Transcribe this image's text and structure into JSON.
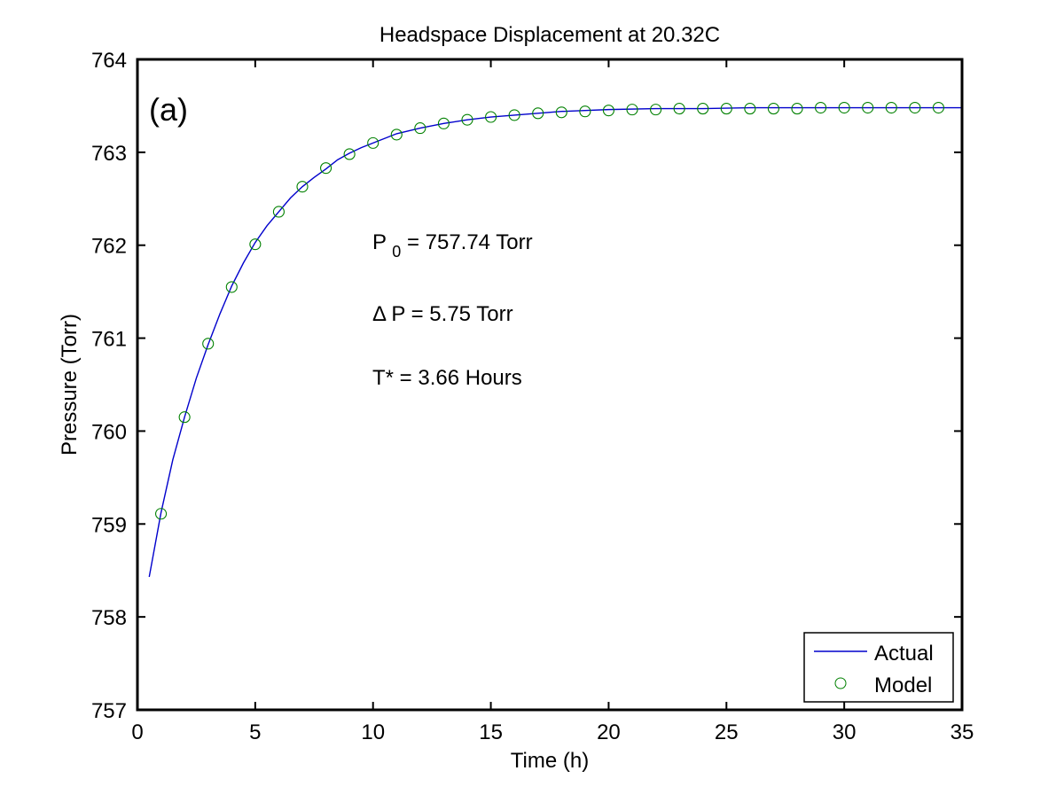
{
  "chart_data": {
    "type": "line",
    "title": "Headspace Displacement at 20.32C",
    "xlabel": "Time (h)",
    "ylabel": "Pressure (Torr)",
    "xlim": [
      0,
      35
    ],
    "ylim": [
      757,
      764
    ],
    "xticks": [
      0,
      5,
      10,
      15,
      20,
      25,
      30,
      35
    ],
    "yticks": [
      757,
      758,
      759,
      760,
      761,
      762,
      763,
      764
    ],
    "xtick_labels": [
      "0",
      "5",
      "10",
      "15",
      "20",
      "25",
      "30",
      "35"
    ],
    "ytick_labels": [
      "757",
      "758",
      "759",
      "760",
      "761",
      "762",
      "763",
      "764"
    ],
    "grid": false,
    "legend_position": "bottom-right",
    "panel_label": "(a)",
    "annotations": {
      "p0_prefix": "P",
      "p0_sub": "0",
      "p0_rest": " = 757.74 Torr",
      "delta_p": "Δ P = 5.75 Torr",
      "t_star": "T* = 3.66 Hours"
    },
    "series": [
      {
        "name": "Actual",
        "kind": "line",
        "color": "#0000cc",
        "x": [
          0.5,
          1,
          1.5,
          2,
          2.5,
          3,
          3.5,
          4,
          4.5,
          5,
          5.5,
          6,
          6.5,
          7,
          7.5,
          8,
          8.5,
          9,
          9.5,
          10,
          11,
          12,
          13,
          14,
          15,
          16,
          17,
          18,
          19,
          20,
          22,
          24,
          26,
          28,
          30,
          32,
          34,
          35
        ],
        "y": [
          758.43,
          759.12,
          759.69,
          760.15,
          760.57,
          760.93,
          761.26,
          761.56,
          761.81,
          762.03,
          762.21,
          762.36,
          762.51,
          762.63,
          762.73,
          762.82,
          762.92,
          762.99,
          763.05,
          763.1,
          763.2,
          763.26,
          763.31,
          763.35,
          763.38,
          763.4,
          763.42,
          763.44,
          763.45,
          763.46,
          763.47,
          763.47,
          763.48,
          763.48,
          763.48,
          763.48,
          763.48,
          763.48
        ]
      },
      {
        "name": "Model",
        "kind": "scatter",
        "color": "#008000",
        "x": [
          1,
          2,
          3,
          4,
          5,
          6,
          7,
          8,
          9,
          10,
          11,
          12,
          13,
          14,
          15,
          16,
          17,
          18,
          19,
          20,
          21,
          22,
          23,
          24,
          25,
          26,
          27,
          28,
          29,
          30,
          31,
          32,
          33,
          34
        ],
        "y": [
          759.11,
          760.15,
          760.94,
          761.55,
          762.01,
          762.36,
          762.63,
          762.83,
          762.98,
          763.1,
          763.19,
          763.26,
          763.31,
          763.35,
          763.38,
          763.4,
          763.42,
          763.43,
          763.44,
          763.45,
          763.46,
          763.46,
          763.47,
          763.47,
          763.47,
          763.47,
          763.47,
          763.47,
          763.48,
          763.48,
          763.48,
          763.48,
          763.48,
          763.48
        ]
      }
    ]
  }
}
